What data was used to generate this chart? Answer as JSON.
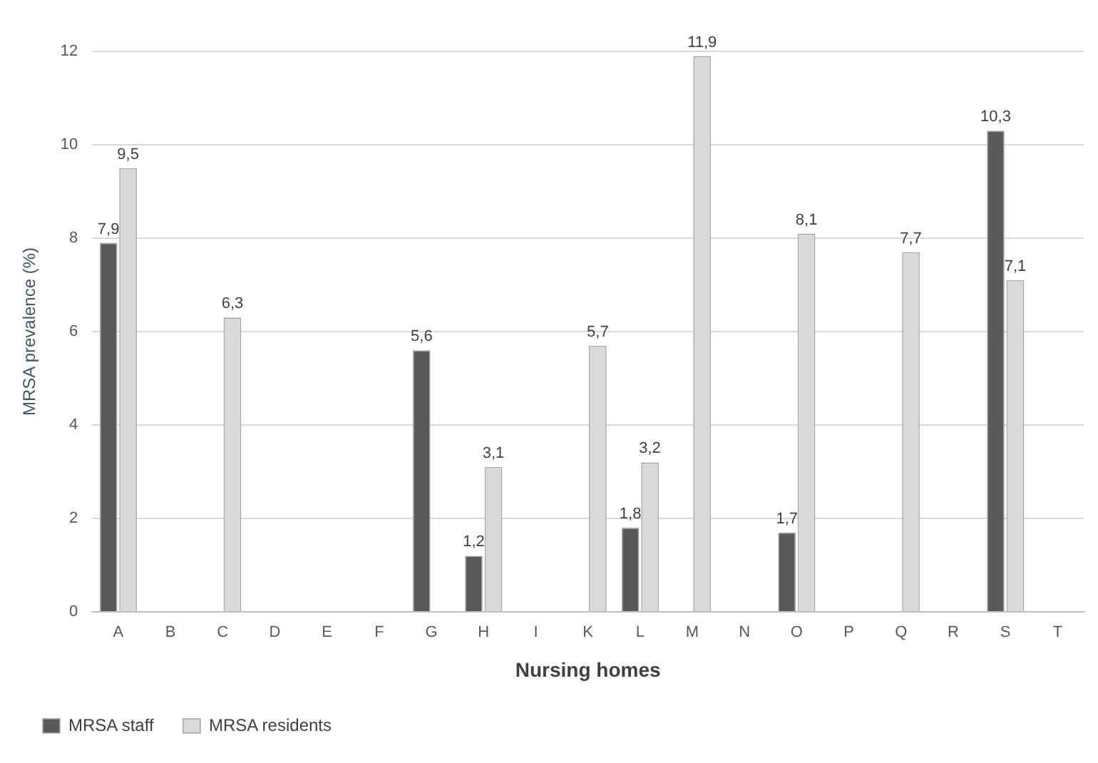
{
  "chart_data": {
    "type": "bar",
    "xlabel": "Nursing homes",
    "ylabel": "MRSA prevalence (%)",
    "categories": [
      "A",
      "B",
      "C",
      "D",
      "E",
      "F",
      "G",
      "H",
      "I",
      "K",
      "L",
      "M",
      "N",
      "O",
      "P",
      "Q",
      "R",
      "S",
      "T"
    ],
    "series": [
      {
        "name": "MRSA staff",
        "color": "#595959",
        "values": [
          7.9,
          0,
          0,
          0,
          0,
          0,
          5.6,
          1.2,
          0,
          0,
          1.8,
          0,
          0,
          1.7,
          0,
          0,
          0,
          10.3,
          0
        ],
        "value_labels": [
          "7,9",
          null,
          null,
          null,
          null,
          null,
          "5,6",
          "1,2",
          null,
          null,
          "1,8",
          null,
          null,
          "1,7",
          null,
          null,
          null,
          "10,3",
          null
        ]
      },
      {
        "name": "MRSA residents",
        "color": "#d9d9d9",
        "values": [
          9.5,
          0,
          6.3,
          0,
          0,
          0,
          0,
          3.1,
          0,
          5.7,
          3.2,
          11.9,
          0,
          8.1,
          0,
          7.7,
          0,
          7.1,
          0
        ],
        "value_labels": [
          "9,5",
          null,
          "6,3",
          null,
          null,
          null,
          null,
          "3,1",
          null,
          "5,7",
          "3,2",
          "11,9",
          null,
          "8,1",
          null,
          "7,7",
          null,
          "7,1",
          null
        ]
      }
    ],
    "ylim": [
      0,
      12
    ],
    "yticks": [
      0,
      2,
      4,
      6,
      8,
      10,
      12
    ],
    "grid": "y",
    "legend": "bottom left"
  }
}
